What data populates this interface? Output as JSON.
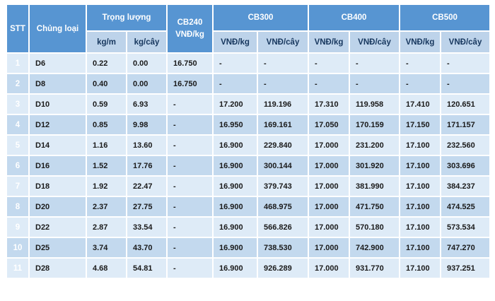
{
  "table": {
    "header": {
      "stt": "STT",
      "chung_loai": "Chủng loại",
      "trong_luong": "Trọng lượng",
      "cb240": "CB240",
      "cb300": "CB300",
      "cb400": "CB400",
      "cb500": "CB500",
      "kg_m": "kg/m",
      "kg_cay": "kg/cây",
      "vnd_kg": "VNĐ/kg",
      "vnd_cay": "VNĐ/cây"
    },
    "rows": [
      [
        "1",
        "D6",
        "0.22",
        "0.00",
        "16.750",
        "-",
        "-",
        "-",
        "-",
        "-",
        "-"
      ],
      [
        "2",
        "D8",
        "0.40",
        "0.00",
        "16.750",
        "-",
        "-",
        "-",
        "-",
        "-",
        "-"
      ],
      [
        "3",
        "D10",
        "0.59",
        "6.93",
        "-",
        "17.200",
        "119.196",
        "17.310",
        "119.958",
        "17.410",
        "120.651"
      ],
      [
        "4",
        "D12",
        "0.85",
        "9.98",
        "-",
        "16.950",
        "169.161",
        "17.050",
        "170.159",
        "17.150",
        "171.157"
      ],
      [
        "5",
        "D14",
        "1.16",
        "13.60",
        "-",
        "16.900",
        "229.840",
        "17.000",
        "231.200",
        "17.100",
        "232.560"
      ],
      [
        "6",
        "D16",
        "1.52",
        "17.76",
        "-",
        "16.900",
        "300.144",
        "17.000",
        "301.920",
        "17.100",
        "303.696"
      ],
      [
        "7",
        "D18",
        "1.92",
        "22.47",
        "-",
        "16.900",
        "379.743",
        "17.000",
        "381.990",
        "17.100",
        "384.237"
      ],
      [
        "8",
        "D20",
        "2.37",
        "27.75",
        "-",
        "16.900",
        "468.975",
        "17.000",
        "471.750",
        "17.100",
        "474.525"
      ],
      [
        "9",
        "D22",
        "2.87",
        "33.54",
        "-",
        "16.900",
        "566.826",
        "17.000",
        "570.180",
        "17.100",
        "573.534"
      ],
      [
        "10",
        "D25",
        "3.74",
        "43.70",
        "-",
        "16.900",
        "738.530",
        "17.000",
        "742.900",
        "17.100",
        "747.270"
      ],
      [
        "11",
        "D28",
        "4.68",
        "54.81",
        "-",
        "16.900",
        "926.289",
        "17.000",
        "931.770",
        "17.100",
        "937.251"
      ]
    ],
    "colors": {
      "header_blue": "#5795D2",
      "subheader_blue": "#BDD3EA",
      "row_light": "#DEEBF7",
      "row_medium": "#C3D9EE",
      "gridline": "#ffffff",
      "subheader_text": "#17375E",
      "header_text": "#ffffff",
      "data_text": "#1a1a1a"
    }
  }
}
